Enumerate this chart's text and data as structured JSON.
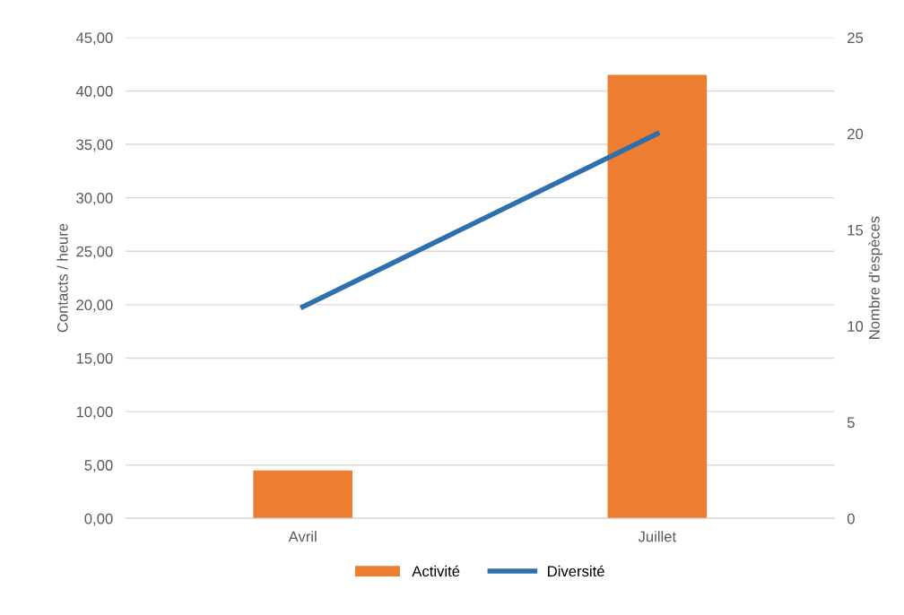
{
  "chart_data": {
    "type": "bar",
    "categories": [
      "Avril",
      "Juillet"
    ],
    "series": [
      {
        "name": "Activité",
        "color": "#ed7d31",
        "values": [
          4.5,
          41.5
        ]
      },
      {
        "name": "Diversité",
        "type": "line",
        "axis": "y2",
        "color": "#2e6fad",
        "values": [
          11,
          20
        ]
      }
    ],
    "ylabel": "Contacts / heure",
    "y2label": "Nombre d'espèces",
    "ylim": [
      0,
      45
    ],
    "yticks": [
      {
        "value": 0,
        "label": "0,00"
      },
      {
        "value": 5,
        "label": "5,00"
      },
      {
        "value": 10,
        "label": "10,00"
      },
      {
        "value": 15,
        "label": "15,00"
      },
      {
        "value": 20,
        "label": "20,00"
      },
      {
        "value": 25,
        "label": "25,00"
      },
      {
        "value": 30,
        "label": "30,00"
      },
      {
        "value": 35,
        "label": "35,00"
      },
      {
        "value": 40,
        "label": "40,00"
      },
      {
        "value": 45,
        "label": "45,00"
      }
    ],
    "y2lim": [
      0,
      25
    ],
    "y2ticks": [
      0,
      5,
      10,
      15,
      20,
      25
    ],
    "grid": "y",
    "legend": "bottom",
    "marker": "none",
    "line_style": "solid"
  }
}
